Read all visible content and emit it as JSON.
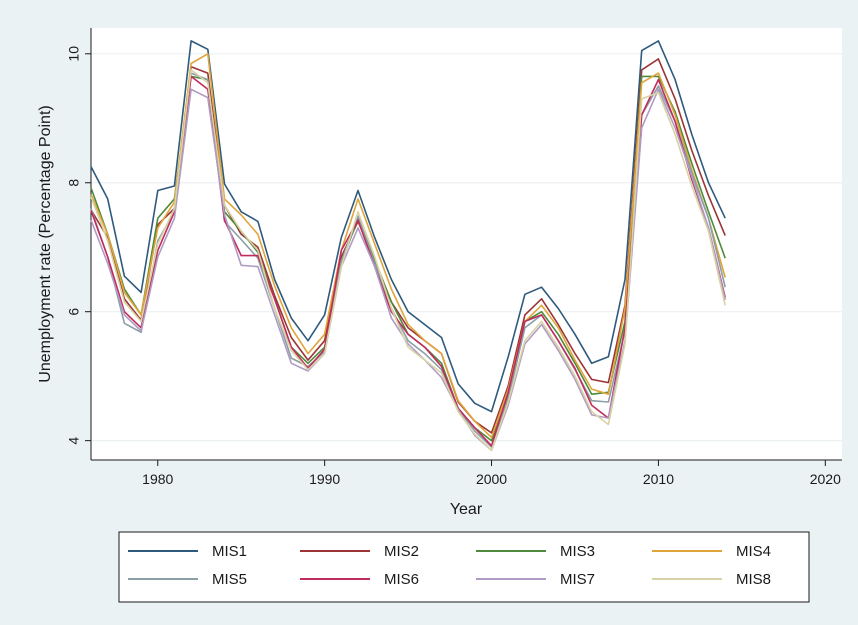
{
  "chart_data": {
    "type": "line",
    "xlabel": "Year",
    "ylabel": "Unemployment rate (Percentage Point)",
    "xlim": [
      1976,
      2021
    ],
    "ylim": [
      3.7,
      10.4
    ],
    "xticks": [
      1980,
      1990,
      2000,
      2010,
      2020
    ],
    "yticks": [
      4,
      6,
      8,
      10
    ],
    "grid": "horizontal",
    "legend_position": "bottom",
    "x": [
      1976,
      1977,
      1978,
      1979,
      1980,
      1981,
      1982,
      1983,
      1984,
      1985,
      1986,
      1987,
      1988,
      1989,
      1990,
      1991,
      1992,
      1993,
      1994,
      1995,
      1996,
      1997,
      1998,
      1999,
      2000,
      2001,
      2002,
      2003,
      2004,
      2005,
      2006,
      2007,
      2008,
      2009,
      2010,
      2011,
      2012,
      2013,
      2014
    ],
    "series": [
      {
        "name": "MIS1",
        "color": "#2e5a7e",
        "values": [
          8.25,
          7.75,
          6.55,
          6.3,
          7.88,
          7.95,
          10.2,
          10.07,
          7.98,
          7.55,
          7.4,
          6.5,
          5.9,
          5.55,
          5.95,
          7.15,
          7.88,
          7.15,
          6.5,
          6.0,
          5.8,
          5.6,
          4.88,
          4.58,
          4.45,
          5.3,
          6.27,
          6.38,
          6.05,
          5.65,
          5.2,
          5.3,
          6.5,
          10.05,
          10.2,
          9.6,
          8.75,
          8.0,
          7.45
        ]
      },
      {
        "name": "MIS2",
        "color": "#9b3535",
        "values": [
          7.58,
          7.15,
          6.2,
          5.87,
          7.35,
          7.6,
          9.8,
          9.7,
          7.65,
          7.2,
          7.0,
          6.25,
          5.6,
          5.25,
          5.55,
          6.85,
          7.4,
          6.8,
          6.15,
          5.75,
          5.55,
          5.35,
          4.6,
          4.3,
          4.12,
          4.85,
          5.95,
          6.2,
          5.8,
          5.35,
          4.95,
          4.9,
          6.1,
          9.75,
          9.92,
          9.3,
          8.5,
          7.8,
          7.18
        ]
      },
      {
        "name": "MIS3",
        "color": "#4f8a3c",
        "values": [
          7.92,
          7.2,
          6.35,
          5.95,
          7.45,
          7.75,
          9.65,
          9.6,
          7.55,
          7.25,
          6.92,
          6.2,
          5.45,
          5.2,
          5.45,
          6.75,
          7.45,
          6.8,
          6.15,
          5.65,
          5.45,
          5.2,
          4.5,
          4.2,
          4.0,
          4.7,
          5.85,
          6.0,
          5.65,
          5.2,
          4.72,
          4.75,
          5.85,
          9.65,
          9.65,
          9.1,
          8.3,
          7.55,
          6.83
        ]
      },
      {
        "name": "MIS4",
        "color": "#e0a53a",
        "values": [
          7.82,
          7.2,
          6.3,
          5.95,
          7.3,
          7.7,
          9.85,
          10.0,
          7.75,
          7.5,
          7.2,
          6.4,
          5.75,
          5.35,
          5.65,
          6.95,
          7.75,
          7.05,
          6.35,
          5.8,
          5.55,
          5.35,
          4.62,
          4.3,
          4.05,
          4.8,
          5.85,
          6.1,
          5.75,
          5.25,
          4.8,
          4.72,
          6.05,
          9.55,
          9.7,
          9.05,
          8.2,
          7.45,
          6.53
        ]
      },
      {
        "name": "MIS5",
        "color": "#8a9fa6",
        "values": [
          7.6,
          6.85,
          5.82,
          5.68,
          7.1,
          7.55,
          9.7,
          9.6,
          7.4,
          7.12,
          6.83,
          6.05,
          5.28,
          5.15,
          5.38,
          6.78,
          7.48,
          6.75,
          6.05,
          5.55,
          5.35,
          5.1,
          4.5,
          4.15,
          3.9,
          4.65,
          5.75,
          5.95,
          5.55,
          5.1,
          4.62,
          4.6,
          5.7,
          9.05,
          9.5,
          8.95,
          8.15,
          7.45,
          6.38
        ]
      },
      {
        "name": "MIS6",
        "color": "#c22c5c",
        "values": [
          7.57,
          6.85,
          6.0,
          5.75,
          6.95,
          7.55,
          9.65,
          9.45,
          7.42,
          6.87,
          6.87,
          6.2,
          5.45,
          5.12,
          5.42,
          6.95,
          7.42,
          6.7,
          6.0,
          5.65,
          5.45,
          5.15,
          4.5,
          4.2,
          3.92,
          4.75,
          5.85,
          5.95,
          5.55,
          5.12,
          4.55,
          4.35,
          5.75,
          9.05,
          9.6,
          8.95,
          8.05,
          7.3,
          6.22
        ]
      },
      {
        "name": "MIS7",
        "color": "#b09bc4",
        "values": [
          7.42,
          6.75,
          5.95,
          5.7,
          6.85,
          7.45,
          9.45,
          9.32,
          7.5,
          6.72,
          6.7,
          5.95,
          5.2,
          5.08,
          5.35,
          6.7,
          7.3,
          6.7,
          5.9,
          5.5,
          5.25,
          4.98,
          4.48,
          4.08,
          3.85,
          4.55,
          5.5,
          5.8,
          5.4,
          4.95,
          4.4,
          4.35,
          5.55,
          8.85,
          9.45,
          8.85,
          8.1,
          7.3,
          6.18
        ]
      },
      {
        "name": "MIS8",
        "color": "#d8d3a4",
        "values": [
          7.78,
          7.1,
          6.15,
          5.85,
          7.05,
          7.6,
          9.75,
          9.55,
          7.65,
          7.25,
          6.95,
          6.05,
          5.4,
          5.1,
          5.35,
          6.7,
          7.55,
          6.85,
          6.05,
          5.45,
          5.25,
          5.05,
          4.45,
          4.1,
          3.85,
          4.6,
          5.55,
          5.85,
          5.45,
          5.0,
          4.45,
          4.25,
          5.5,
          9.3,
          9.4,
          8.75,
          7.95,
          7.25,
          6.1
        ]
      }
    ]
  }
}
